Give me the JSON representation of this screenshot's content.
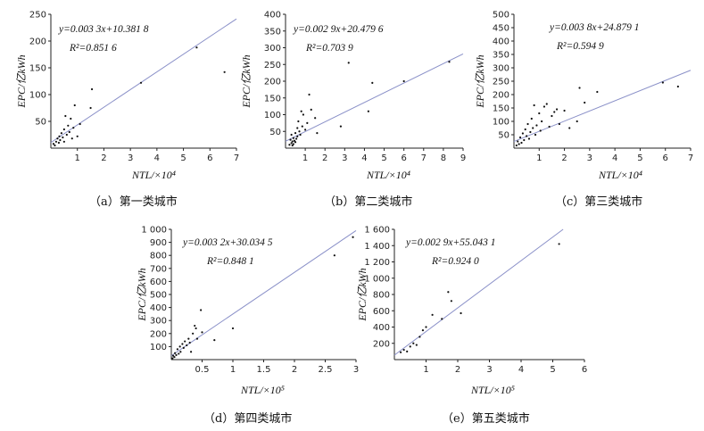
{
  "chart_data": [
    {
      "id": "a",
      "type": "scatter",
      "caption": "（a）第一类城市",
      "xlabel": "NTL/×10⁴",
      "ylabel": "EPC/亿kWh",
      "xlim": [
        0,
        7
      ],
      "ylim": [
        0,
        250
      ],
      "xticks": [
        "1",
        "2",
        "3",
        "4",
        "5",
        "6",
        "7"
      ],
      "yticks": [
        "50",
        "100",
        "150",
        "200",
        "250"
      ],
      "equation": "y=0.003 3x+10.381 8",
      "r2": "R²=0.851 6",
      "fit": {
        "slope": 33,
        "intercept": 10.3818
      },
      "points": [
        [
          0.1,
          8
        ],
        [
          0.15,
          5
        ],
        [
          0.2,
          12
        ],
        [
          0.25,
          18
        ],
        [
          0.3,
          10
        ],
        [
          0.32,
          22
        ],
        [
          0.35,
          15
        ],
        [
          0.4,
          28
        ],
        [
          0.45,
          20
        ],
        [
          0.5,
          35
        ],
        [
          0.5,
          12
        ],
        [
          0.55,
          60
        ],
        [
          0.6,
          25
        ],
        [
          0.65,
          42
        ],
        [
          0.7,
          30
        ],
        [
          0.75,
          55
        ],
        [
          0.8,
          18
        ],
        [
          0.85,
          38
        ],
        [
          0.9,
          80
        ],
        [
          1.0,
          22
        ],
        [
          1.1,
          45
        ],
        [
          1.5,
          75
        ],
        [
          1.55,
          110
        ],
        [
          3.4,
          122
        ],
        [
          5.5,
          188
        ],
        [
          6.55,
          142
        ]
      ],
      "line_color": "#8a90c8",
      "point_color": "#111111"
    },
    {
      "id": "b",
      "type": "scatter",
      "caption": "（b）第二类城市",
      "xlabel": "NTL/×10⁴",
      "ylabel": "EPC/亿kWh",
      "xlim": [
        0,
        9
      ],
      "ylim": [
        0,
        400
      ],
      "xticks": [
        "1",
        "2",
        "3",
        "4",
        "5",
        "6",
        "7",
        "8",
        "9"
      ],
      "yticks": [
        "50",
        "100",
        "150",
        "200",
        "250",
        "300",
        "350",
        "400"
      ],
      "equation": "y=0.002 9x+20.479 6",
      "r2": "R²=0.703 9",
      "fit": {
        "slope": 29,
        "intercept": 20.4796
      },
      "points": [
        [
          0.2,
          10
        ],
        [
          0.25,
          25
        ],
        [
          0.3,
          15
        ],
        [
          0.3,
          40
        ],
        [
          0.35,
          20
        ],
        [
          0.35,
          8
        ],
        [
          0.4,
          30
        ],
        [
          0.4,
          12
        ],
        [
          0.45,
          22
        ],
        [
          0.5,
          45
        ],
        [
          0.5,
          18
        ],
        [
          0.55,
          28
        ],
        [
          0.6,
          60
        ],
        [
          0.6,
          35
        ],
        [
          0.65,
          80
        ],
        [
          0.7,
          50
        ],
        [
          0.75,
          40
        ],
        [
          0.8,
          110
        ],
        [
          0.85,
          65
        ],
        [
          0.9,
          100
        ],
        [
          1.0,
          55
        ],
        [
          1.1,
          75
        ],
        [
          1.2,
          160
        ],
        [
          1.3,
          115
        ],
        [
          1.5,
          90
        ],
        [
          1.6,
          45
        ],
        [
          2.8,
          65
        ],
        [
          3.2,
          255
        ],
        [
          4.2,
          110
        ],
        [
          4.4,
          195
        ],
        [
          6.0,
          200
        ],
        [
          8.3,
          258
        ]
      ],
      "line_color": "#8a90c8",
      "point_color": "#111111"
    },
    {
      "id": "c",
      "type": "scatter",
      "caption": "（c）第三类城市",
      "xlabel": "NTL/×10⁴",
      "ylabel": "EPC/亿kWh",
      "xlim": [
        0,
        7
      ],
      "ylim": [
        0,
        500
      ],
      "xticks": [
        "1",
        "2",
        "3",
        "4",
        "5",
        "6",
        "7"
      ],
      "yticks": [
        "50",
        "100",
        "150",
        "200",
        "250",
        "300",
        "350",
        "400",
        "450",
        "500"
      ],
      "equation": "y=0.003 8x+24.879 1",
      "r2": "R²=0.594 9",
      "fit": {
        "slope": 38,
        "intercept": 24.8791
      },
      "points": [
        [
          0.1,
          10
        ],
        [
          0.15,
          25
        ],
        [
          0.2,
          15
        ],
        [
          0.25,
          40
        ],
        [
          0.3,
          20
        ],
        [
          0.35,
          55
        ],
        [
          0.4,
          30
        ],
        [
          0.45,
          70
        ],
        [
          0.5,
          45
        ],
        [
          0.55,
          90
        ],
        [
          0.6,
          35
        ],
        [
          0.65,
          60
        ],
        [
          0.7,
          110
        ],
        [
          0.75,
          75
        ],
        [
          0.8,
          160
        ],
        [
          0.85,
          50
        ],
        [
          0.9,
          85
        ],
        [
          1.0,
          130
        ],
        [
          1.05,
          65
        ],
        [
          1.1,
          100
        ],
        [
          1.2,
          155
        ],
        [
          1.3,
          165
        ],
        [
          1.4,
          80
        ],
        [
          1.5,
          120
        ],
        [
          1.6,
          135
        ],
        [
          1.7,
          145
        ],
        [
          1.8,
          90
        ],
        [
          2.0,
          140
        ],
        [
          2.2,
          75
        ],
        [
          2.5,
          100
        ],
        [
          2.6,
          225
        ],
        [
          2.8,
          170
        ],
        [
          3.3,
          210
        ],
        [
          5.9,
          245
        ],
        [
          6.5,
          230
        ]
      ],
      "line_color": "#8a90c8",
      "point_color": "#111111"
    },
    {
      "id": "d",
      "type": "scatter",
      "caption": "（d）第四类城市",
      "xlabel": "NTL/×10⁵",
      "ylabel": "EPC/亿kWh",
      "xlim": [
        0,
        3
      ],
      "ylim": [
        0,
        1000
      ],
      "xticks": [
        "0.5",
        "1",
        "1.5",
        "2",
        "2.5",
        "3"
      ],
      "yticks": [
        "100",
        "200",
        "300",
        "400",
        "500",
        "600",
        "700",
        "800",
        "900",
        "1 000"
      ],
      "equation": "y=0.003 2x+30.034 5",
      "r2": "R²=0.848 1",
      "fit": {
        "slope": 320,
        "intercept": 30.0345
      },
      "points": [
        [
          0.02,
          10
        ],
        [
          0.03,
          30
        ],
        [
          0.05,
          20
        ],
        [
          0.06,
          50
        ],
        [
          0.08,
          35
        ],
        [
          0.1,
          80
        ],
        [
          0.12,
          45
        ],
        [
          0.14,
          100
        ],
        [
          0.15,
          60
        ],
        [
          0.18,
          120
        ],
        [
          0.2,
          90
        ],
        [
          0.22,
          140
        ],
        [
          0.25,
          110
        ],
        [
          0.28,
          160
        ],
        [
          0.3,
          130
        ],
        [
          0.32,
          60
        ],
        [
          0.35,
          200
        ],
        [
          0.38,
          260
        ],
        [
          0.4,
          240
        ],
        [
          0.42,
          160
        ],
        [
          0.48,
          380
        ],
        [
          0.5,
          210
        ],
        [
          0.7,
          150
        ],
        [
          1.0,
          240
        ],
        [
          2.65,
          800
        ],
        [
          2.95,
          940
        ]
      ],
      "line_color": "#8a90c8",
      "point_color": "#111111"
    },
    {
      "id": "e",
      "type": "scatter",
      "caption": "（e）第五类城市",
      "xlabel": "NTL/×10⁵",
      "ylabel": "EPC/亿kWh",
      "xlim": [
        0,
        6
      ],
      "ylim": [
        0,
        1600
      ],
      "xticks": [
        "1",
        "2",
        "3",
        "4",
        "5",
        "6"
      ],
      "yticks": [
        "200",
        "400",
        "600",
        "800",
        "1 000",
        "1 200",
        "1 400",
        "1 600"
      ],
      "equation": "y=0.002 9x+55.043 1",
      "r2": "R²=0.924 0",
      "fit": {
        "slope": 290,
        "intercept": 55.0431
      },
      "points": [
        [
          0.2,
          90
        ],
        [
          0.3,
          120
        ],
        [
          0.4,
          100
        ],
        [
          0.5,
          160
        ],
        [
          0.6,
          200
        ],
        [
          0.7,
          180
        ],
        [
          0.8,
          280
        ],
        [
          0.9,
          360
        ],
        [
          1.0,
          400
        ],
        [
          1.2,
          550
        ],
        [
          1.5,
          500
        ],
        [
          1.7,
          830
        ],
        [
          1.8,
          720
        ],
        [
          2.1,
          570
        ],
        [
          5.2,
          1420
        ]
      ],
      "line_color": "#8a90c8",
      "point_color": "#111111"
    }
  ]
}
